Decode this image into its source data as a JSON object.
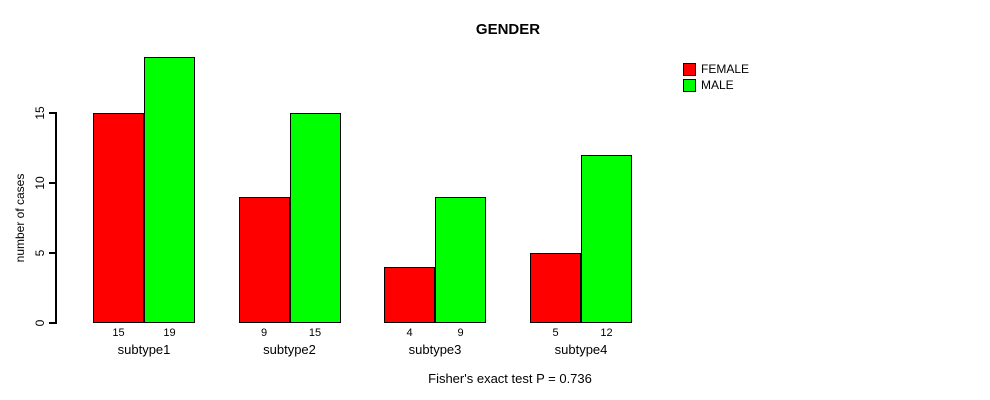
{
  "chart_data": {
    "type": "bar",
    "title": "GENDER",
    "xlabel": "",
    "ylabel": "number of cases",
    "categories": [
      "subtype1",
      "subtype2",
      "subtype3",
      "subtype4"
    ],
    "series": [
      {
        "name": "FEMALE",
        "color": "#FF0000",
        "values": [
          15,
          9,
          4,
          5
        ]
      },
      {
        "name": "MALE",
        "color": "#00FF00",
        "values": [
          19,
          15,
          9,
          12
        ]
      }
    ],
    "yticks": [
      0,
      5,
      10,
      15
    ],
    "ylim": [
      0,
      19
    ],
    "grid": false,
    "bar_value_labels_shown": true,
    "legend_position": "top-right",
    "annotation": "Fisher's exact test P = 0.736"
  },
  "colors": {
    "background": "#FFFFFF",
    "axis": "#000000",
    "female": "#FF0000",
    "male": "#00FF00"
  }
}
